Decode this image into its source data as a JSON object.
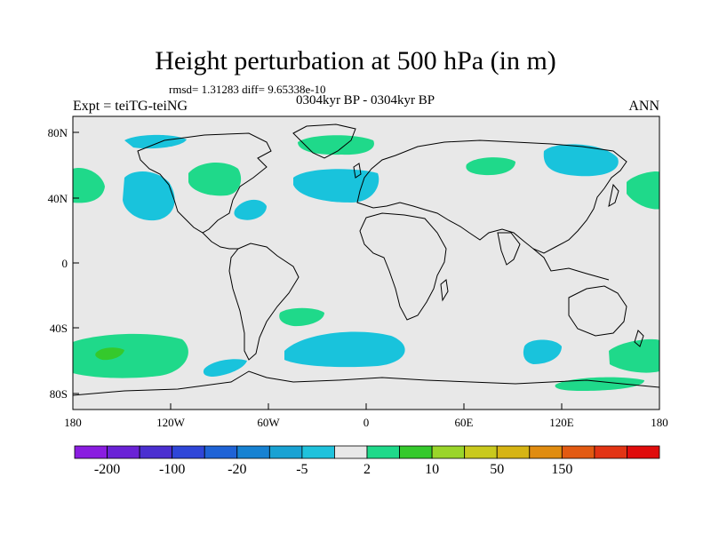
{
  "title": "Height perturbation at 500 hPa (in m)",
  "stats": "rmsd= 1.31283 diff= 9.65338e-10",
  "left_label": "Expt = teiTG-teiNG",
  "center_label": "0304kyr BP - 0304kyr BP",
  "right_label": "ANN",
  "map": {
    "projection": "cylindrical-equidistant",
    "lon_range": [
      -180,
      180
    ],
    "lat_range": [
      -90,
      90
    ],
    "lat_ticks": [
      "80N",
      "40N",
      "0",
      "40S",
      "80S"
    ],
    "lon_ticks": [
      "180",
      "120W",
      "60W",
      "0",
      "60E",
      "120E",
      "180"
    ],
    "background_color": "#e8e8e8"
  },
  "colorbar": {
    "labels": [
      "-200",
      "-100",
      "-20",
      "-5",
      "2",
      "10",
      "50",
      "150"
    ],
    "colors": [
      "#8a1de0",
      "#6a22d6",
      "#4b2fd0",
      "#2f46d8",
      "#1f63d6",
      "#1782d2",
      "#19a2d3",
      "#1fc2dc",
      "#e8e8e8",
      "#1fd98a",
      "#35c92c",
      "#9ad52a",
      "#c9c91e",
      "#d6b414",
      "#e08c10",
      "#e25a12",
      "#e23414",
      "#e00c0c"
    ]
  },
  "anomalies": [
    {
      "region": "North Pacific",
      "sign": "negative",
      "color": "#19c3dc"
    },
    {
      "region": "Alaska / NW Canada",
      "sign": "positive",
      "color": "#1fd98a"
    },
    {
      "region": "Arctic north of Canada",
      "sign": "negative",
      "color": "#19c3dc"
    },
    {
      "region": "Greenland / Arctic",
      "sign": "positive",
      "color": "#1fd98a"
    },
    {
      "region": "North Atlantic",
      "sign": "negative",
      "color": "#19c3dc"
    },
    {
      "region": "Eastern North America",
      "sign": "negative",
      "color": "#19c3dc"
    },
    {
      "region": "Central Siberia",
      "sign": "positive",
      "color": "#1fd98a"
    },
    {
      "region": "Northeast Asia",
      "sign": "negative",
      "color": "#19c3dc"
    },
    {
      "region": "Northwest Pacific",
      "sign": "positive",
      "color": "#1fd98a"
    },
    {
      "region": "Northeast Pacific",
      "sign": "positive",
      "color": "#1fd98a"
    },
    {
      "region": "South Pacific",
      "sign": "positive",
      "color": "#1fd98a"
    },
    {
      "region": "South Pacific core",
      "sign": "positive",
      "color": "#35c92c"
    },
    {
      "region": "South Atlantic",
      "sign": "positive",
      "color": "#1fd98a"
    },
    {
      "region": "Drake Passage",
      "sign": "negative",
      "color": "#19c3dc"
    },
    {
      "region": "Southern Atlantic / Indian",
      "sign": "negative",
      "color": "#19c3dc"
    },
    {
      "region": "Southern Indian Ocean",
      "sign": "negative",
      "color": "#19c3dc"
    },
    {
      "region": "Southwest Pacific",
      "sign": "positive",
      "color": "#1fd98a"
    },
    {
      "region": "Antarctic coast Pacific",
      "sign": "positive",
      "color": "#1fd98a"
    }
  ]
}
